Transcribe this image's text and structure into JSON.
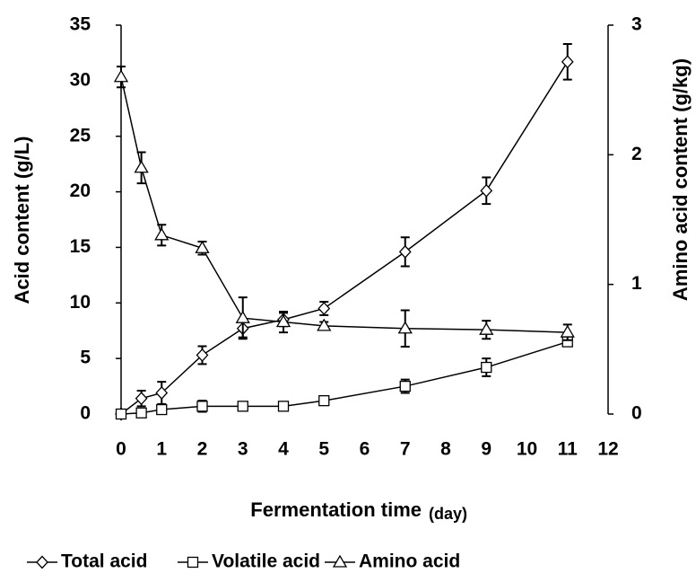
{
  "chart_data": {
    "type": "line",
    "xlabel": "Fermentation time",
    "xlabel_unit": "(day)",
    "ylabel": "Acid content  (g/L)",
    "y2label": "Amino acid content (g/kg)",
    "xlim": [
      0,
      12
    ],
    "xticks": [
      0,
      1,
      2,
      3,
      4,
      5,
      6,
      7,
      8,
      9,
      10,
      11,
      12
    ],
    "ylim": [
      0,
      35
    ],
    "yticks": [
      0,
      5,
      10,
      15,
      20,
      25,
      30,
      35
    ],
    "y2lim": [
      0,
      3
    ],
    "y2ticks": [
      0,
      1,
      2,
      3
    ],
    "legend": "bottom",
    "series": [
      {
        "name": "Total acid",
        "color": "#000000",
        "marker": "diamond",
        "x": [
          0,
          0.5,
          1,
          2,
          3,
          4,
          5,
          7,
          9,
          11
        ],
        "values": [
          0,
          1.4,
          1.9,
          5.3,
          7.7,
          8.5,
          9.5,
          14.6,
          20.1,
          31.7
        ],
        "errors": [
          0.1,
          0.7,
          1.0,
          0.8,
          0.8,
          0.6,
          0.6,
          1.3,
          1.2,
          1.6
        ]
      },
      {
        "name": "Volatile acid",
        "color": "#000000",
        "marker": "square",
        "x": [
          0,
          0.5,
          1,
          2,
          3,
          4,
          5,
          7,
          9,
          11
        ],
        "values": [
          0,
          0.1,
          0.4,
          0.7,
          0.7,
          0.7,
          1.2,
          2.5,
          4.2,
          6.5
        ],
        "errors": [
          0.1,
          0.1,
          0.2,
          0.5,
          0.2,
          0.2,
          0.2,
          0.6,
          0.8,
          0.4
        ]
      },
      {
        "name": "Amino acid",
        "color": "#000000",
        "marker": "triangle",
        "axis": "y2",
        "x": [
          0,
          0.5,
          1,
          2,
          3,
          4,
          5,
          7,
          9,
          11
        ],
        "values": [
          2.6,
          1.9,
          1.38,
          1.28,
          0.74,
          0.71,
          0.68,
          0.66,
          0.65,
          0.63
        ],
        "errors": [
          0.08,
          0.12,
          0.08,
          0.05,
          0.16,
          0.08,
          0.03,
          0.14,
          0.07,
          0.06
        ]
      }
    ]
  }
}
